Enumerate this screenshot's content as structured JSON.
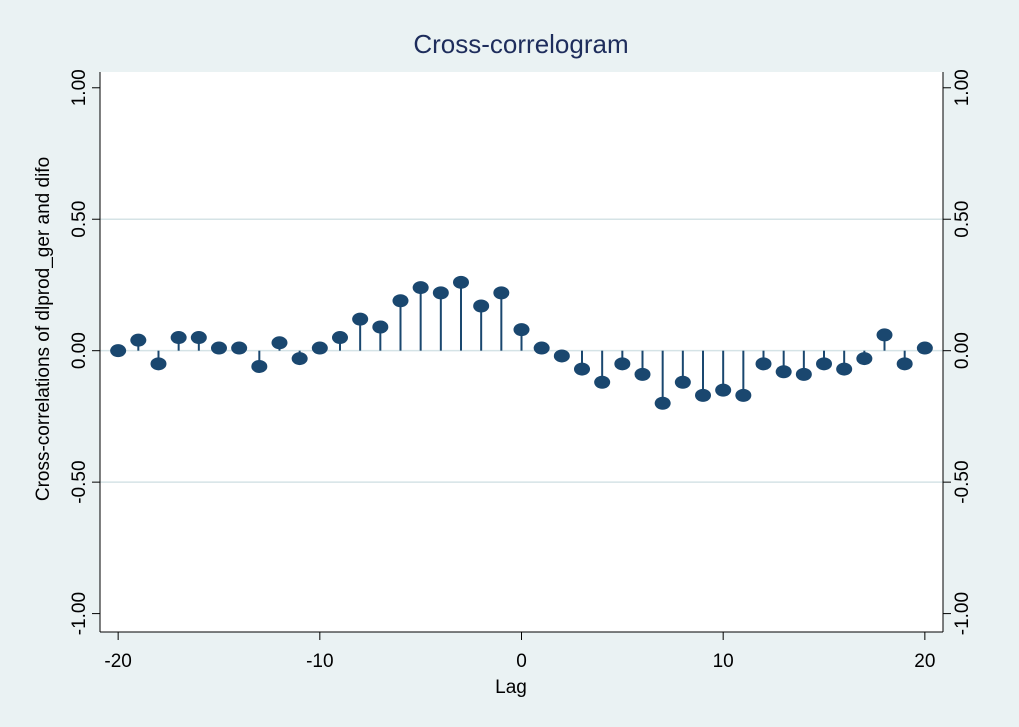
{
  "chart_data": {
    "type": "stem",
    "title": "Cross-correlogram",
    "x_label": "Lag",
    "y_label": "Cross-correlations of dlprod_ger and difo",
    "x": [
      -20,
      -19,
      -18,
      -17,
      -16,
      -15,
      -14,
      -13,
      -12,
      -11,
      -10,
      -9,
      -8,
      -7,
      -6,
      -5,
      -4,
      -3,
      -2,
      -1,
      0,
      1,
      2,
      3,
      4,
      5,
      6,
      7,
      8,
      9,
      10,
      11,
      12,
      13,
      14,
      15,
      16,
      17,
      18,
      19,
      20
    ],
    "values": [
      0.0,
      0.04,
      -0.05,
      0.05,
      0.05,
      0.01,
      0.01,
      -0.06,
      0.03,
      -0.03,
      0.01,
      0.05,
      0.12,
      0.09,
      0.19,
      0.24,
      0.22,
      0.26,
      0.17,
      0.22,
      0.08,
      0.01,
      -0.02,
      -0.07,
      -0.12,
      -0.05,
      -0.09,
      -0.2,
      -0.12,
      -0.17,
      -0.15,
      -0.17,
      -0.05,
      -0.08,
      -0.09,
      -0.05,
      -0.07,
      -0.03,
      0.06,
      -0.05,
      0.01
    ],
    "color": "#1a476f",
    "xlim": [
      -20.9,
      20.9
    ],
    "xticks": [
      -20,
      -10,
      0,
      10,
      20
    ],
    "ylim": [
      -1.07,
      1.06
    ],
    "yticks": [
      {
        "value": -1,
        "label": "-1.00"
      },
      {
        "value": -0.5,
        "label": "-0.50"
      },
      {
        "value": 0,
        "label": "0.00"
      },
      {
        "value": 0.5,
        "label": "0.50"
      },
      {
        "value": 1,
        "label": "1.00"
      }
    ],
    "y2lim": [
      -1.07,
      1.06
    ],
    "y2ticks": [
      {
        "value": -1,
        "label": "-1.00"
      },
      {
        "value": -0.5,
        "label": "-0.50"
      },
      {
        "value": 0,
        "label": "0.00"
      },
      {
        "value": 0.5,
        "label": "0.50"
      },
      {
        "value": 1,
        "label": "1.00"
      }
    ],
    "grid": true
  }
}
